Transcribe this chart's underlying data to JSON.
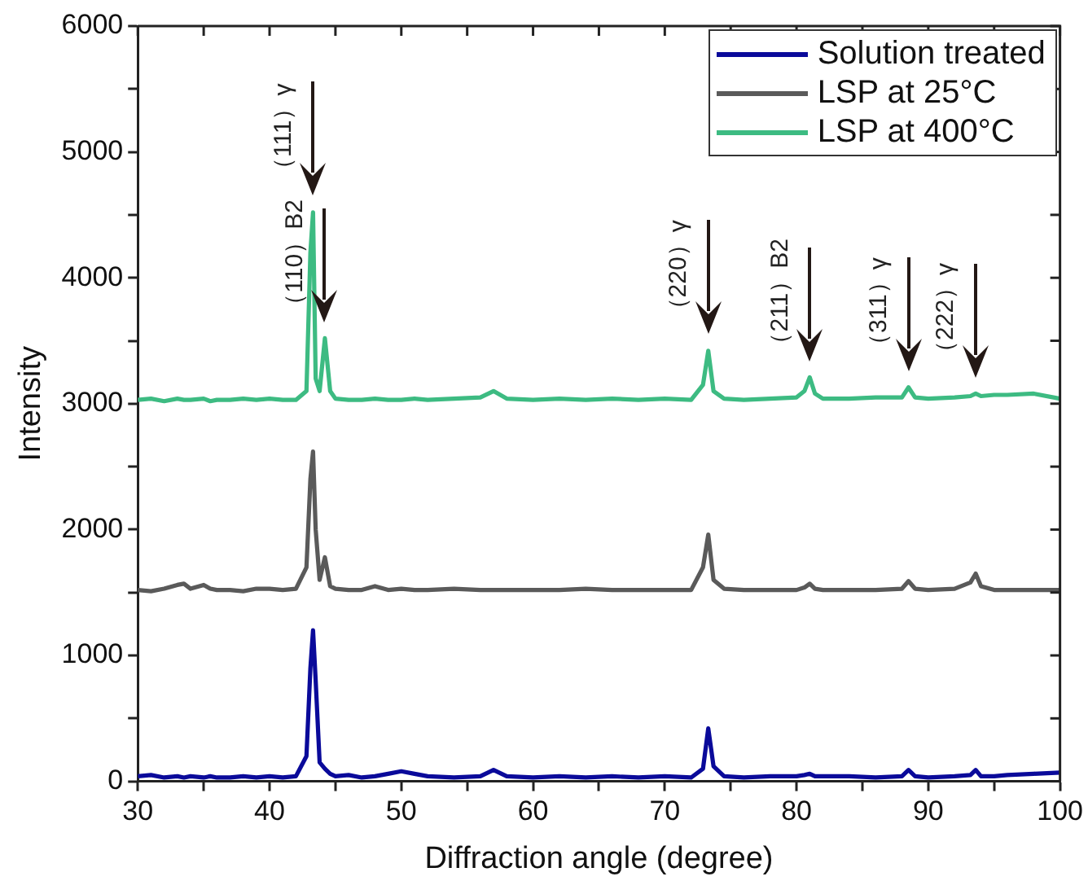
{
  "chart_data": {
    "type": "line",
    "xlabel": "Diffraction angle (degree)",
    "ylabel": "Intensity",
    "x": [
      30,
      31,
      32,
      33,
      33.5,
      34,
      35,
      35.5,
      36,
      37,
      38,
      39,
      40,
      41,
      42,
      42.8,
      43.1,
      43.3,
      43.5,
      43.8,
      44.2,
      44.6,
      45,
      46,
      47,
      48,
      49,
      50,
      51,
      52,
      54,
      56,
      57,
      58,
      60,
      62,
      64,
      66,
      68,
      70,
      72,
      72.9,
      73.3,
      73.7,
      74.5,
      76,
      78,
      80,
      80.6,
      81,
      81.4,
      82,
      84,
      86,
      88,
      88.5,
      89,
      90,
      92,
      93.2,
      93.6,
      94,
      95,
      96,
      98,
      100
    ],
    "series": [
      {
        "name": "Solution treated",
        "color": "#0a0a9a",
        "values": [
          40,
          50,
          30,
          40,
          30,
          40,
          30,
          40,
          30,
          30,
          40,
          30,
          40,
          30,
          40,
          200,
          900,
          1200,
          800,
          150,
          100,
          60,
          40,
          50,
          30,
          40,
          60,
          80,
          60,
          40,
          30,
          40,
          90,
          40,
          30,
          40,
          30,
          40,
          30,
          40,
          30,
          100,
          420,
          120,
          40,
          30,
          40,
          40,
          50,
          60,
          40,
          40,
          40,
          30,
          40,
          90,
          40,
          30,
          40,
          50,
          90,
          40,
          40,
          50,
          60,
          70
        ]
      },
      {
        "name": "LSP at 25°C",
        "color": "#5a5a5a",
        "values": [
          1520,
          1510,
          1530,
          1560,
          1570,
          1530,
          1560,
          1530,
          1520,
          1520,
          1510,
          1530,
          1530,
          1520,
          1530,
          1700,
          2400,
          2620,
          2000,
          1600,
          1780,
          1550,
          1530,
          1520,
          1520,
          1550,
          1520,
          1530,
          1520,
          1520,
          1530,
          1520,
          1520,
          1520,
          1520,
          1520,
          1530,
          1520,
          1520,
          1520,
          1520,
          1700,
          1960,
          1600,
          1530,
          1520,
          1520,
          1520,
          1540,
          1570,
          1530,
          1520,
          1520,
          1520,
          1530,
          1590,
          1530,
          1520,
          1530,
          1580,
          1650,
          1550,
          1520,
          1520,
          1520,
          1520
        ]
      },
      {
        "name": "LSP at 400°C",
        "color": "#3dbb82",
        "values": [
          3030,
          3040,
          3020,
          3040,
          3030,
          3030,
          3040,
          3020,
          3030,
          3030,
          3040,
          3030,
          3040,
          3030,
          3030,
          3100,
          4200,
          4520,
          3200,
          3100,
          3520,
          3100,
          3040,
          3030,
          3030,
          3040,
          3030,
          3030,
          3040,
          3030,
          3040,
          3050,
          3100,
          3040,
          3030,
          3040,
          3030,
          3040,
          3030,
          3040,
          3030,
          3150,
          3420,
          3100,
          3040,
          3030,
          3040,
          3050,
          3100,
          3210,
          3080,
          3040,
          3040,
          3050,
          3050,
          3130,
          3050,
          3040,
          3050,
          3060,
          3080,
          3060,
          3070,
          3070,
          3080,
          3040
        ]
      }
    ],
    "xlim": [
      30,
      100
    ],
    "xticks": [
      30,
      {
        "value": 35,
        "label": null
      },
      40,
      {
        "value": 45,
        "label": null
      },
      50,
      {
        "value": 55,
        "label": null
      },
      60,
      {
        "value": 65,
        "label": null
      },
      70,
      {
        "value": 75,
        "label": null
      },
      80,
      {
        "value": 85,
        "label": null
      },
      90,
      {
        "value": 95,
        "label": null
      },
      100
    ],
    "ylim": [
      0,
      6000
    ],
    "yticks": [
      0,
      {
        "value": 500,
        "label": null
      },
      1000,
      {
        "value": 1500,
        "label": null
      },
      2000,
      {
        "value": 2500,
        "label": null
      },
      3000,
      {
        "value": 3500,
        "label": null
      },
      4000,
      {
        "value": 4500,
        "label": null
      },
      5000,
      {
        "value": 5500,
        "label": null
      },
      6000
    ],
    "annotations": [
      {
        "text": "（111）γ",
        "x": 43.3,
        "y": 4520
      },
      {
        "text": "（110）B2",
        "x": 44.2,
        "y": 3520
      },
      {
        "text": "（220）γ",
        "x": 73.3,
        "y": 3420
      },
      {
        "text": "（211）B2",
        "x": 81,
        "y": 3210
      },
      {
        "text": "（311）γ",
        "x": 88.5,
        "y": 3130
      },
      {
        "text": "（222）γ",
        "x": 93.6,
        "y": 3080
      }
    ],
    "grid": false,
    "legend": "top right",
    "marker": "none",
    "line_style": "solid"
  }
}
